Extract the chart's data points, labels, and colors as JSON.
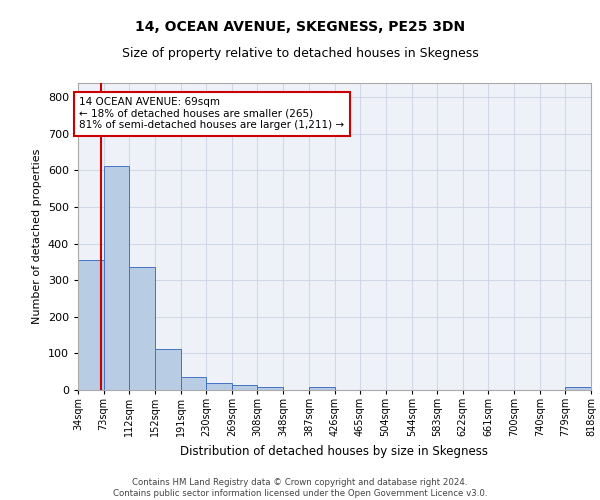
{
  "title": "14, OCEAN AVENUE, SKEGNESS, PE25 3DN",
  "subtitle": "Size of property relative to detached houses in Skegness",
  "xlabel": "Distribution of detached houses by size in Skegness",
  "ylabel": "Number of detached properties",
  "bin_edges": [
    34,
    73,
    112,
    152,
    191,
    230,
    269,
    308,
    348,
    387,
    426,
    465,
    504,
    544,
    583,
    622,
    661,
    700,
    740,
    779,
    818
  ],
  "bin_labels": [
    "34sqm",
    "73sqm",
    "112sqm",
    "152sqm",
    "191sqm",
    "230sqm",
    "269sqm",
    "308sqm",
    "348sqm",
    "387sqm",
    "426sqm",
    "465sqm",
    "504sqm",
    "544sqm",
    "583sqm",
    "622sqm",
    "661sqm",
    "700sqm",
    "740sqm",
    "779sqm",
    "818sqm"
  ],
  "bar_heights": [
    355,
    613,
    335,
    113,
    35,
    20,
    14,
    8,
    0,
    8,
    0,
    0,
    0,
    0,
    0,
    0,
    0,
    0,
    0,
    8
  ],
  "bar_color": "#b8cce4",
  "bar_edge_color": "#4472c4",
  "grid_color": "#d0d8e8",
  "property_size": 69,
  "property_line_color": "#cc0000",
  "annotation_line1": "14 OCEAN AVENUE: 69sqm",
  "annotation_line2": "← 18% of detached houses are smaller (265)",
  "annotation_line3": "81% of semi-detached houses are larger (1,211) →",
  "annotation_box_color": "#ffffff",
  "annotation_box_edge": "#cc0000",
  "ylim": [
    0,
    840
  ],
  "yticks": [
    0,
    100,
    200,
    300,
    400,
    500,
    600,
    700,
    800
  ],
  "footer_text": "Contains HM Land Registry data © Crown copyright and database right 2024.\nContains public sector information licensed under the Open Government Licence v3.0.",
  "bg_color": "#ffffff",
  "plot_bg_color": "#eef2f8"
}
